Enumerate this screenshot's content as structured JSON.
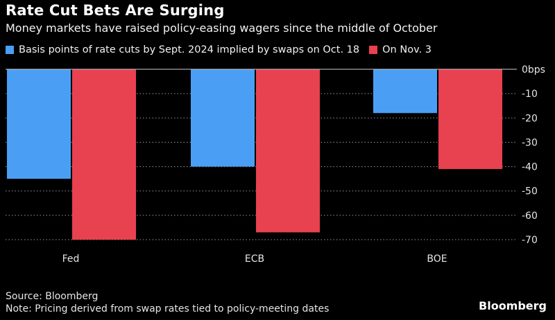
{
  "header": {
    "title": "Rate Cut Bets Are Surging",
    "subtitle": "Money markets have raised policy-easing wagers since the middle of October"
  },
  "legend": {
    "items": [
      {
        "label": "Basis points of rate cuts by Sept. 2024 implied by swaps on Oct. 18",
        "color": "#4a9ff5"
      },
      {
        "label": "On Nov. 3",
        "color": "#e8414f"
      }
    ]
  },
  "footer": {
    "source": "Source: Bloomberg",
    "note": "Note: Pricing derived from swap rates tied to policy-meeting dates",
    "brand": "Bloomberg"
  },
  "chart_data": {
    "type": "bar",
    "categories": [
      "Fed",
      "ECB",
      "BOE"
    ],
    "series": [
      {
        "name": "Basis points of rate cuts by Sept. 2024 implied by swaps on Oct. 18",
        "values": [
          -45,
          -40,
          -18
        ],
        "color": "#4a9ff5"
      },
      {
        "name": "On Nov. 3",
        "values": [
          -70,
          -67,
          -41
        ],
        "color": "#e8414f"
      }
    ],
    "ylim": [
      -70,
      0
    ],
    "yticks": [
      {
        "value": 0,
        "label": "0bps"
      },
      {
        "value": -10,
        "label": "-10"
      },
      {
        "value": -20,
        "label": "-20"
      },
      {
        "value": -30,
        "label": "-30"
      },
      {
        "value": -40,
        "label": "-40"
      },
      {
        "value": -50,
        "label": "-50"
      },
      {
        "value": -60,
        "label": "-60"
      },
      {
        "value": -70,
        "label": "-70"
      }
    ],
    "grid": true,
    "ylabel_position": "right"
  }
}
